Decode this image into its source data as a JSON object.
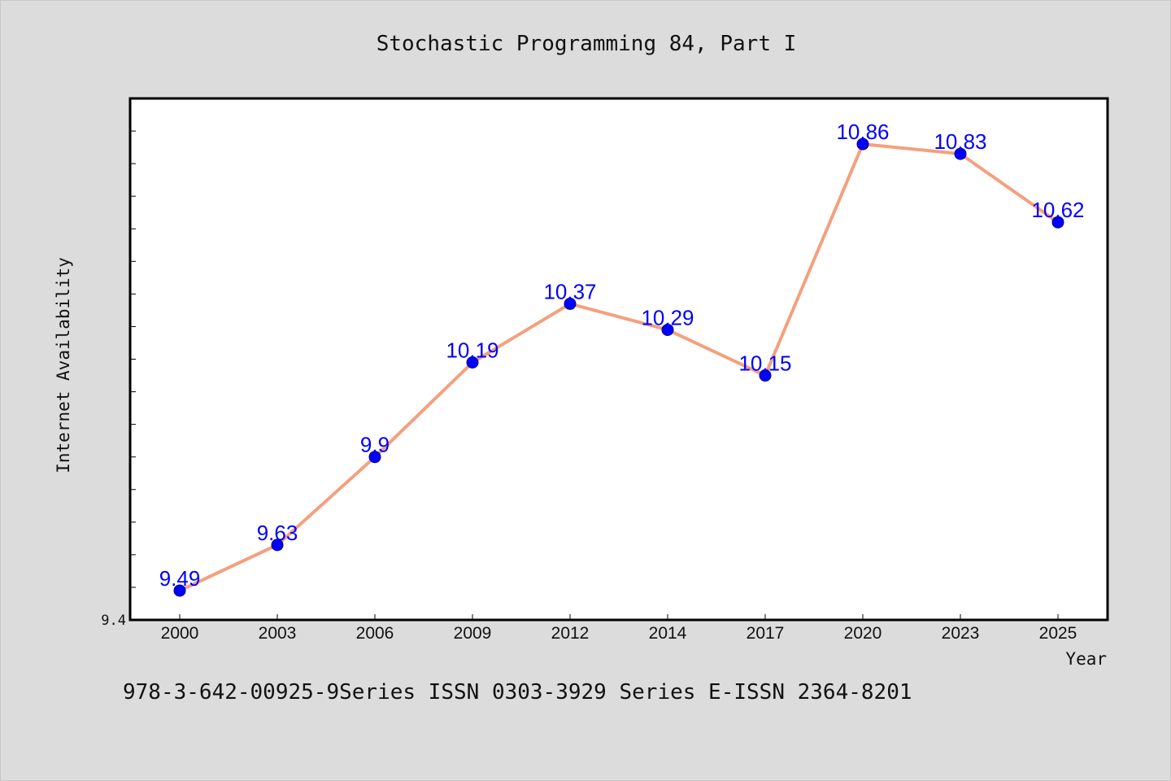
{
  "chart_data": {
    "type": "line",
    "title": "Stochastic Programming 84, Part I",
    "xlabel": "Year",
    "ylabel": "Internet Availability",
    "categories": [
      "2000",
      "2003",
      "2006",
      "2009",
      "2012",
      "2014",
      "2017",
      "2020",
      "2023",
      "2025"
    ],
    "series": [
      {
        "values": [
          9.49,
          9.63,
          9.9,
          10.19,
          10.37,
          10.29,
          10.15,
          10.86,
          10.83,
          10.62
        ],
        "labels": [
          "9.49",
          "9.63",
          "9.9",
          "10.19",
          "10.37",
          "10.29",
          "10.15",
          "10.86",
          "10.83",
          "10.62"
        ],
        "line_color": "#f4a07e",
        "marker_color": "#0000ff"
      }
    ],
    "ylim": [
      9.4,
      11.0
    ],
    "y_tick_labels": [
      "9.4"
    ],
    "y_minor_tick_step": 0.1,
    "grid": false,
    "legend": "none"
  },
  "footer": {
    "text": "978-3-642-00925-9Series ISSN 0303-3929 Series E-ISSN 2364-8201"
  },
  "colors": {
    "background": "#dcdcdc",
    "plot_area": "#ffffff",
    "axis": "#000000",
    "data_label": "#0000ff"
  }
}
